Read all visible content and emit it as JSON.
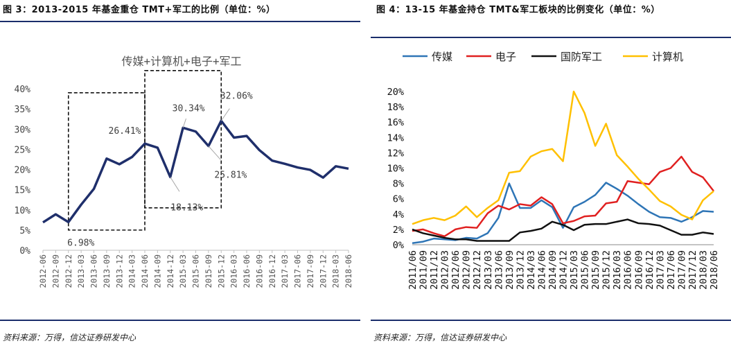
{
  "left": {
    "figure_title": "图 3：2013-2015 年基金重仓 TMT+军工的比例（单位：%）",
    "source": "资料来源：万得，信达证券研发中心"
  },
  "right": {
    "figure_title": "图 4：13-15 年基金持仓 TMT&军工板块的比例变化（单位：%）",
    "source": "资料来源：万得，信达证券研发中心"
  },
  "colors": {
    "rule": "#1a2d6b",
    "left_series": "#1f2f6b",
    "media": "#2e75b6",
    "electronics": "#e02020",
    "defense": "#111111",
    "computer": "#ffc000"
  },
  "chart_data": [
    {
      "type": "line",
      "title": "传媒+计算机+电子+军工",
      "x": [
        "2012-06",
        "2012-09",
        "2012-12",
        "2013-03",
        "2013-06",
        "2013-09",
        "2013-12",
        "2014-03",
        "2014-06",
        "2014-09",
        "2014-12",
        "2015-03",
        "2015-06",
        "2015-09",
        "2015-12",
        "2016-03",
        "2016-06",
        "2016-09",
        "2016-12",
        "2017-03",
        "2017-06",
        "2017-09",
        "2017-12",
        "2018-03",
        "2018-06"
      ],
      "series": [
        {
          "name": "",
          "values": [
            6.9,
            8.9,
            6.98,
            11.3,
            15.2,
            22.7,
            21.3,
            23.1,
            26.41,
            25.4,
            18.13,
            30.34,
            29.4,
            25.81,
            32.06,
            27.9,
            28.3,
            24.8,
            22.2,
            21.4,
            20.5,
            19.9,
            18.0,
            20.8,
            20.2
          ]
        }
      ],
      "ylim": [
        0,
        40
      ],
      "yticks": [
        "0%",
        "5%",
        "10%",
        "15%",
        "20%",
        "25%",
        "30%",
        "35%",
        "40%"
      ],
      "annotations": [
        "6.98%",
        "26.41%",
        "30.34%",
        "32.06%",
        "25.81%",
        "18.13%"
      ],
      "grid": false
    },
    {
      "type": "line",
      "title": "",
      "x": [
        "2011/06",
        "2011/09",
        "2011/12",
        "2012/03",
        "2012/06",
        "2012/09",
        "2012/12",
        "2013/03",
        "2013/06",
        "2013/09",
        "2013/12",
        "2014/03",
        "2014/06",
        "2014/09",
        "2014/12",
        "2015/03",
        "2015/06",
        "2015/09",
        "2015/12",
        "2016/03",
        "2016/06",
        "2016/09",
        "2016/12",
        "2017/03",
        "2017/06",
        "2017/09",
        "2017/12",
        "2018/03",
        "2018/06"
      ],
      "series": [
        {
          "name": "传媒",
          "values": [
            0.2,
            0.4,
            0.8,
            0.7,
            0.6,
            0.9,
            0.8,
            1.5,
            3.5,
            8.0,
            4.8,
            4.8,
            5.8,
            4.9,
            2.2,
            4.9,
            5.6,
            6.5,
            8.1,
            7.3,
            6.4,
            5.3,
            4.3,
            3.6,
            3.5,
            3.0,
            3.6,
            4.4,
            4.3
          ]
        },
        {
          "name": "电子",
          "values": [
            1.8,
            2.0,
            1.5,
            1.1,
            2.0,
            2.3,
            2.2,
            4.1,
            5.1,
            4.6,
            5.3,
            5.1,
            6.2,
            5.3,
            2.8,
            3.1,
            3.7,
            3.8,
            5.4,
            5.6,
            8.3,
            8.1,
            7.9,
            9.5,
            10.0,
            11.5,
            9.5,
            8.8,
            7.0
          ]
        },
        {
          "name": "国防军工",
          "values": [
            2.0,
            1.5,
            1.2,
            0.9,
            0.7,
            0.7,
            0.5,
            0.5,
            0.5,
            0.5,
            1.6,
            1.8,
            2.1,
            3.0,
            2.6,
            1.9,
            2.6,
            2.7,
            2.7,
            3.0,
            3.3,
            2.8,
            2.7,
            2.5,
            1.9,
            1.3,
            1.3,
            1.6,
            1.4
          ]
        },
        {
          "name": "计算机",
          "values": [
            2.7,
            3.2,
            3.5,
            3.2,
            3.8,
            5.0,
            3.6,
            4.8,
            5.8,
            9.4,
            9.6,
            11.5,
            12.2,
            12.5,
            10.9,
            20.0,
            17.2,
            12.9,
            15.8,
            11.7,
            10.2,
            8.6,
            7.2,
            5.7,
            5.0,
            3.9,
            3.3,
            5.8,
            7.0
          ]
        }
      ],
      "ylim": [
        0,
        20
      ],
      "yticks": [
        "0%",
        "2%",
        "4%",
        "6%",
        "8%",
        "10%",
        "12%",
        "14%",
        "16%",
        "18%",
        "20%"
      ],
      "legend": "top",
      "grid": false
    }
  ]
}
